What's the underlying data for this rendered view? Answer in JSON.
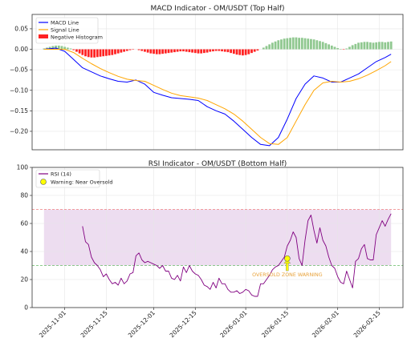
{
  "chart_data": [
    {
      "type": "line",
      "title": "MACD Indicator - OM/USDT (Top Half)",
      "xlim": [
        "2025-10-21",
        "2026-02-23"
      ],
      "ylim": [
        -0.245,
        0.085
      ],
      "yticks": [
        0.05,
        0.0,
        -0.05,
        -0.1,
        -0.15,
        -0.2
      ],
      "ytick_labels": [
        "0.05",
        "0.00",
        "−0.05",
        "−0.10",
        "−0.15",
        "−0.20"
      ],
      "grid": true,
      "legend": {
        "placement": "top-left",
        "entries": [
          {
            "label": "MACD Line",
            "color": "#0000ff",
            "kind": "line"
          },
          {
            "label": "Signal Line",
            "color": "#ffa500",
            "kind": "line"
          },
          {
            "label": "Negative Histogram",
            "color": "#ff0000",
            "kind": "patch"
          }
        ]
      },
      "histogram": {
        "positive_color": "#90c890",
        "negative_color": "#ff2222",
        "x": [
          "2025-10-25",
          "2025-10-26",
          "2025-10-27",
          "2025-10-28",
          "2025-10-29",
          "2025-10-30",
          "2025-10-31",
          "2025-11-01",
          "2025-11-02",
          "2025-11-03",
          "2025-11-04",
          "2025-11-05",
          "2025-11-06",
          "2025-11-07",
          "2025-11-08",
          "2025-11-09",
          "2025-11-10",
          "2025-11-11",
          "2025-11-12",
          "2025-11-13",
          "2025-11-14",
          "2025-11-15",
          "2025-11-16",
          "2025-11-17",
          "2025-11-18",
          "2025-11-19",
          "2025-11-20",
          "2025-11-21",
          "2025-11-22",
          "2025-11-23",
          "2025-11-24",
          "2025-11-25",
          "2025-11-26",
          "2025-11-27",
          "2025-11-28",
          "2025-11-29",
          "2025-11-30",
          "2025-12-01",
          "2025-12-02",
          "2025-12-03",
          "2025-12-04",
          "2025-12-05",
          "2025-12-06",
          "2025-12-07",
          "2025-12-08",
          "2025-12-09",
          "2025-12-10",
          "2025-12-11",
          "2025-12-12",
          "2025-12-13",
          "2025-12-14",
          "2025-12-15",
          "2025-12-16",
          "2025-12-17",
          "2025-12-18",
          "2025-12-19",
          "2025-12-20",
          "2025-12-21",
          "2025-12-22",
          "2025-12-23",
          "2025-12-24",
          "2025-12-25",
          "2025-12-26",
          "2025-12-27",
          "2025-12-28",
          "2025-12-29",
          "2025-12-30",
          "2025-12-31",
          "2026-01-01",
          "2026-01-02",
          "2026-01-03",
          "2026-01-04",
          "2026-01-05",
          "2026-01-06",
          "2026-01-07",
          "2026-01-08",
          "2026-01-09",
          "2026-01-10",
          "2026-01-11",
          "2026-01-12",
          "2026-01-13",
          "2026-01-14",
          "2026-01-15",
          "2026-01-16",
          "2026-01-17",
          "2026-01-18",
          "2026-01-19",
          "2026-01-20",
          "2026-01-21",
          "2026-01-22",
          "2026-01-23",
          "2026-01-24",
          "2026-01-25",
          "2026-01-26",
          "2026-01-27",
          "2026-01-28",
          "2026-01-29",
          "2026-01-30",
          "2026-01-31",
          "2026-02-01",
          "2026-02-02",
          "2026-02-03",
          "2026-02-04",
          "2026-02-05",
          "2026-02-06",
          "2026-02-07",
          "2026-02-08",
          "2026-02-09",
          "2026-02-10",
          "2026-02-11",
          "2026-02-12",
          "2026-02-13",
          "2026-02-14",
          "2026-02-15",
          "2026-02-16",
          "2026-02-17",
          "2026-02-18",
          "2026-02-19"
        ],
        "values": [
          0.002,
          0.004,
          0.006,
          0.008,
          0.009,
          0.009,
          0.008,
          0.006,
          0.004,
          0.002,
          -0.002,
          -0.006,
          -0.01,
          -0.014,
          -0.017,
          -0.019,
          -0.02,
          -0.02,
          -0.019,
          -0.018,
          -0.017,
          -0.016,
          -0.015,
          -0.014,
          -0.012,
          -0.01,
          -0.008,
          -0.006,
          -0.004,
          -0.002,
          -0.001,
          0.0,
          -0.002,
          -0.004,
          -0.006,
          -0.008,
          -0.01,
          -0.011,
          -0.012,
          -0.012,
          -0.011,
          -0.01,
          -0.009,
          -0.008,
          -0.007,
          -0.006,
          -0.005,
          -0.005,
          -0.006,
          -0.007,
          -0.008,
          -0.009,
          -0.01,
          -0.01,
          -0.009,
          -0.008,
          -0.006,
          -0.005,
          -0.004,
          -0.004,
          -0.005,
          -0.006,
          -0.007,
          -0.009,
          -0.011,
          -0.013,
          -0.014,
          -0.015,
          -0.014,
          -0.012,
          -0.009,
          -0.006,
          -0.003,
          0.0,
          0.004,
          0.008,
          0.012,
          0.016,
          0.019,
          0.022,
          0.024,
          0.026,
          0.027,
          0.028,
          0.029,
          0.029,
          0.028,
          0.028,
          0.027,
          0.026,
          0.025,
          0.024,
          0.022,
          0.02,
          0.018,
          0.015,
          0.012,
          0.009,
          0.006,
          0.003,
          0.001,
          -0.001,
          0.002,
          0.006,
          0.01,
          0.013,
          0.016,
          0.017,
          0.018,
          0.018,
          0.017,
          0.016,
          0.017,
          0.018,
          0.018,
          0.017,
          0.018,
          0.019
        ]
      },
      "series": [
        {
          "name": "MACD Line",
          "color": "#0000ff",
          "x": [
            "2025-10-25",
            "2025-10-29",
            "2025-11-01",
            "2025-11-04",
            "2025-11-07",
            "2025-11-10",
            "2025-11-13",
            "2025-11-16",
            "2025-11-19",
            "2025-11-22",
            "2025-11-25",
            "2025-11-28",
            "2025-12-01",
            "2025-12-04",
            "2025-12-07",
            "2025-12-10",
            "2025-12-13",
            "2025-12-16",
            "2025-12-19",
            "2025-12-22",
            "2025-12-25",
            "2025-12-28",
            "2025-12-31",
            "2026-01-03",
            "2026-01-06",
            "2026-01-09",
            "2026-01-12",
            "2026-01-15",
            "2026-01-18",
            "2026-01-21",
            "2026-01-24",
            "2026-01-27",
            "2026-01-30",
            "2026-02-02",
            "2026-02-05",
            "2026-02-08",
            "2026-02-11",
            "2026-02-14",
            "2026-02-17",
            "2026-02-19"
          ],
          "y": [
            0.0,
            0.003,
            -0.005,
            -0.025,
            -0.045,
            -0.055,
            -0.065,
            -0.072,
            -0.078,
            -0.08,
            -0.075,
            -0.085,
            -0.105,
            -0.112,
            -0.118,
            -0.12,
            -0.122,
            -0.125,
            -0.14,
            -0.15,
            -0.158,
            -0.175,
            -0.195,
            -0.215,
            -0.232,
            -0.235,
            -0.215,
            -0.17,
            -0.12,
            -0.085,
            -0.065,
            -0.07,
            -0.08,
            -0.08,
            -0.07,
            -0.06,
            -0.045,
            -0.03,
            -0.02,
            -0.012
          ]
        },
        {
          "name": "Signal Line",
          "color": "#ffa500",
          "x": [
            "2025-10-25",
            "2025-10-29",
            "2025-11-01",
            "2025-11-04",
            "2025-11-07",
            "2025-11-10",
            "2025-11-13",
            "2025-11-16",
            "2025-11-19",
            "2025-11-22",
            "2025-11-25",
            "2025-11-28",
            "2025-12-01",
            "2025-12-04",
            "2025-12-07",
            "2025-12-10",
            "2025-12-13",
            "2025-12-16",
            "2025-12-19",
            "2025-12-22",
            "2025-12-25",
            "2025-12-28",
            "2025-12-31",
            "2026-01-03",
            "2026-01-06",
            "2026-01-09",
            "2026-01-12",
            "2026-01-15",
            "2026-01-18",
            "2026-01-21",
            "2026-01-24",
            "2026-01-27",
            "2026-01-30",
            "2026-02-02",
            "2026-02-05",
            "2026-02-08",
            "2026-02-11",
            "2026-02-14",
            "2026-02-17",
            "2026-02-19"
          ],
          "y": [
            0.0,
            0.0,
            0.0,
            -0.008,
            -0.022,
            -0.035,
            -0.047,
            -0.057,
            -0.066,
            -0.073,
            -0.076,
            -0.078,
            -0.088,
            -0.098,
            -0.107,
            -0.113,
            -0.116,
            -0.119,
            -0.125,
            -0.135,
            -0.145,
            -0.158,
            -0.175,
            -0.195,
            -0.215,
            -0.23,
            -0.232,
            -0.215,
            -0.175,
            -0.135,
            -0.1,
            -0.082,
            -0.078,
            -0.08,
            -0.078,
            -0.072,
            -0.063,
            -0.052,
            -0.04,
            -0.03
          ]
        }
      ]
    },
    {
      "type": "line",
      "title": "RSI Indicator - OM/USDT (Bottom Half)",
      "xlim": [
        "2025-10-21",
        "2026-02-23"
      ],
      "ylim": [
        0,
        100
      ],
      "yticks": [
        0,
        20,
        40,
        60,
        80,
        100
      ],
      "ytick_labels": [
        "0",
        "20",
        "40",
        "60",
        "80",
        "100"
      ],
      "xticks": [
        "2025-11-01",
        "2025-11-15",
        "2025-12-01",
        "2025-12-15",
        "2026-01-01",
        "2026-01-15",
        "2026-02-01",
        "2026-02-15"
      ],
      "xtick_labels": [
        "2025-11-01",
        "2025-11-15",
        "2025-12-01",
        "2025-12-15",
        "2026-01-01",
        "2026-01-15",
        "2026-02-01",
        "2026-02-15"
      ],
      "grid": true,
      "overbought_line": {
        "value": 70,
        "color": "#f08080"
      },
      "oversold_line": {
        "value": 30,
        "color": "#66bb66"
      },
      "shaded_band": {
        "from": 30,
        "to": 70,
        "x_from": "2025-10-25",
        "x_to": "2026-02-19",
        "color": "#e8d5ec"
      },
      "legend": {
        "placement": "top-left",
        "entries": [
          {
            "label": "RSI (14)",
            "color": "#800080",
            "kind": "line"
          },
          {
            "label": "Warning: Near Oversold",
            "color": "#ffff00",
            "kind": "marker"
          }
        ]
      },
      "series": [
        {
          "name": "RSI (14)",
          "color": "#800080",
          "x": [
            "2025-11-07",
            "2025-11-08",
            "2025-11-09",
            "2025-11-10",
            "2025-11-11",
            "2025-11-12",
            "2025-11-13",
            "2025-11-14",
            "2025-11-15",
            "2025-11-16",
            "2025-11-17",
            "2025-11-18",
            "2025-11-19",
            "2025-11-20",
            "2025-11-21",
            "2025-11-22",
            "2025-11-23",
            "2025-11-24",
            "2025-11-25",
            "2025-11-26",
            "2025-11-27",
            "2025-11-28",
            "2025-11-29",
            "2025-11-30",
            "2025-12-01",
            "2025-12-02",
            "2025-12-03",
            "2025-12-04",
            "2025-12-05",
            "2025-12-06",
            "2025-12-07",
            "2025-12-08",
            "2025-12-09",
            "2025-12-10",
            "2025-12-11",
            "2025-12-12",
            "2025-12-13",
            "2025-12-14",
            "2025-12-15",
            "2025-12-16",
            "2025-12-17",
            "2025-12-18",
            "2025-12-19",
            "2025-12-20",
            "2025-12-21",
            "2025-12-22",
            "2025-12-23",
            "2025-12-24",
            "2025-12-25",
            "2025-12-26",
            "2025-12-27",
            "2025-12-28",
            "2025-12-29",
            "2025-12-30",
            "2025-12-31",
            "2026-01-01",
            "2026-01-02",
            "2026-01-03",
            "2026-01-04",
            "2026-01-05",
            "2026-01-06",
            "2026-01-07",
            "2026-01-08",
            "2026-01-09",
            "2026-01-10",
            "2026-01-11",
            "2026-01-12",
            "2026-01-13",
            "2026-01-14",
            "2026-01-15",
            "2026-01-16",
            "2026-01-17",
            "2026-01-18",
            "2026-01-19",
            "2026-01-20",
            "2026-01-21",
            "2026-01-22",
            "2026-01-23",
            "2026-01-24",
            "2026-01-25",
            "2026-01-26",
            "2026-01-27",
            "2026-01-28",
            "2026-01-29",
            "2026-01-30",
            "2026-01-31",
            "2026-02-01",
            "2026-02-02",
            "2026-02-03",
            "2026-02-04",
            "2026-02-05",
            "2026-02-06",
            "2026-02-07",
            "2026-02-08",
            "2026-02-09",
            "2026-02-10",
            "2026-02-11",
            "2026-02-12",
            "2026-02-13",
            "2026-02-14",
            "2026-02-15",
            "2026-02-16",
            "2026-02-17",
            "2026-02-18",
            "2026-02-19"
          ],
          "y": [
            58,
            47,
            45,
            36,
            32,
            30,
            27,
            22,
            24,
            20,
            17,
            18,
            16,
            21,
            17,
            19,
            24,
            25,
            37,
            39,
            34,
            32,
            33,
            32,
            31,
            30,
            28,
            30,
            26,
            26,
            21,
            20,
            23,
            19,
            29,
            25,
            30,
            26,
            24,
            23,
            20,
            16,
            15,
            13,
            18,
            14,
            21,
            17,
            17,
            13,
            11,
            11,
            12,
            10,
            11,
            13,
            12,
            9,
            8,
            8,
            17,
            17,
            20,
            23,
            27,
            29,
            30,
            33,
            36,
            44,
            48,
            54,
            50,
            35,
            30,
            48,
            62,
            66,
            55,
            46,
            57,
            48,
            44,
            36,
            30,
            28,
            22,
            18,
            17,
            26,
            20,
            14,
            33,
            35,
            42,
            45,
            35,
            34,
            34,
            52,
            57,
            62,
            58,
            63,
            67
          ]
        }
      ],
      "annotation": {
        "text": "OVERSOLD ZONE WARNING",
        "x": "2026-01-15",
        "marker_y": 35,
        "text_y": 24,
        "color": "#e8a23a",
        "marker_color": "#ffff00"
      }
    }
  ]
}
